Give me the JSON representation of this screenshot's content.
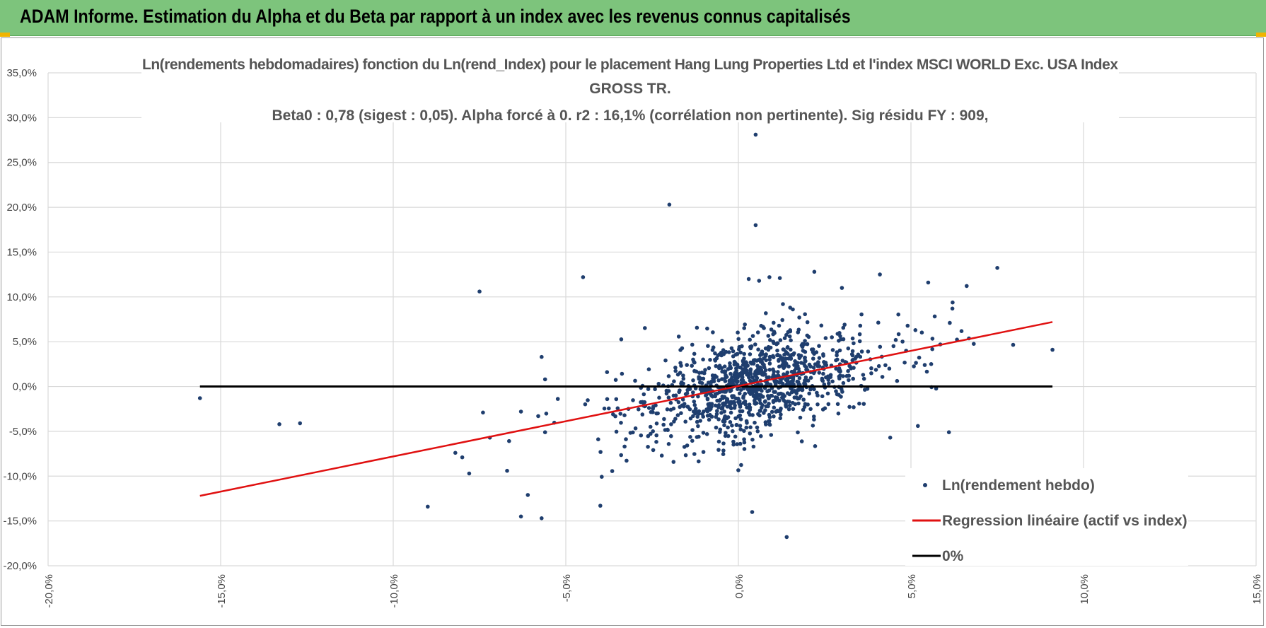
{
  "banner": {
    "title": "ADAM Informe. Estimation du Alpha et du Beta par rapport à un index avec les revenus connus capitalisés"
  },
  "colors": {
    "banner_bg": "#7dc47c",
    "accent_corner": "#f0b400",
    "scatter": "#1f3e6e",
    "regression": "#e01010",
    "zero_line": "#000000",
    "grid": "#d9d9d9"
  },
  "chart_data": {
    "type": "scatter",
    "title_lines": [
      "Ln(rendements hebdomadaires) fonction du Ln(rend_Index) pour le placement Hang Lung Properties Ltd et l'index MSCI WORLD Exc. USA Index",
      "GROSS TR.",
      "Beta0 : 0,78 (sigest : 0,05).  Alpha forcé à 0. r2 : 16,1% (corrélation non pertinente). Sig résidu FY : 909,"
    ],
    "xlim": [
      -0.2,
      0.15
    ],
    "ylim": [
      -0.2,
      0.35
    ],
    "x_ticks": [
      "-20,0%",
      "-15,0%",
      "-10,0%",
      "-5,0%",
      "0,0%",
      "5,0%",
      "10,0%",
      "15,0%"
    ],
    "y_ticks": [
      "35,0%",
      "30,0%",
      "25,0%",
      "20,0%",
      "15,0%",
      "10,0%",
      "5,0%",
      "0,0%",
      "-5,0%",
      "-10,0%",
      "-15,0%",
      "-20,0%"
    ],
    "grid": "vertical and horizontal",
    "legend_position": "bottom-right",
    "series": [
      {
        "name": "Ln(rendement hebdo)",
        "kind": "scatter",
        "cluster_center": [
          0.005,
          0.002
        ],
        "approx_points": 1100,
        "x": [
          -0.156,
          -0.133,
          -0.127,
          -0.09,
          -0.082,
          -0.08,
          -0.078,
          -0.075,
          -0.074,
          -0.072,
          -0.067,
          -0.063,
          -0.063,
          -0.061,
          -0.058,
          -0.057,
          -0.057,
          -0.056,
          -0.056,
          -0.045,
          -0.04,
          -0.02,
          0.003,
          0.004,
          0.005,
          0.005,
          0.006,
          0.009,
          0.012,
          0.014,
          0.015,
          0.022,
          0.03,
          0.041,
          0.044,
          0.052,
          0.054,
          0.055,
          0.061,
          0.062,
          0.091
        ],
        "y": [
          -0.013,
          -0.042,
          -0.041,
          -0.134,
          -0.074,
          -0.079,
          -0.097,
          0.106,
          -0.029,
          -0.057,
          -0.094,
          -0.028,
          -0.145,
          -0.121,
          -0.033,
          -0.147,
          0.033,
          0.008,
          -0.051,
          0.122,
          -0.133,
          0.203,
          0.12,
          -0.14,
          0.281,
          0.18,
          0.118,
          0.122,
          0.121,
          -0.168,
          0.088,
          0.128,
          0.11,
          0.125,
          -0.057,
          -0.044,
          0.024,
          0.116,
          -0.051,
          0.087,
          0.041
        ]
      },
      {
        "name": "Regression linéaire (actif vs index)",
        "kind": "line",
        "x": [
          -0.156,
          0.091
        ],
        "y": [
          -0.122,
          0.072
        ]
      },
      {
        "name": "0%",
        "kind": "line",
        "x": [
          -0.156,
          0.091
        ],
        "y": [
          0.0,
          0.0
        ]
      }
    ]
  }
}
